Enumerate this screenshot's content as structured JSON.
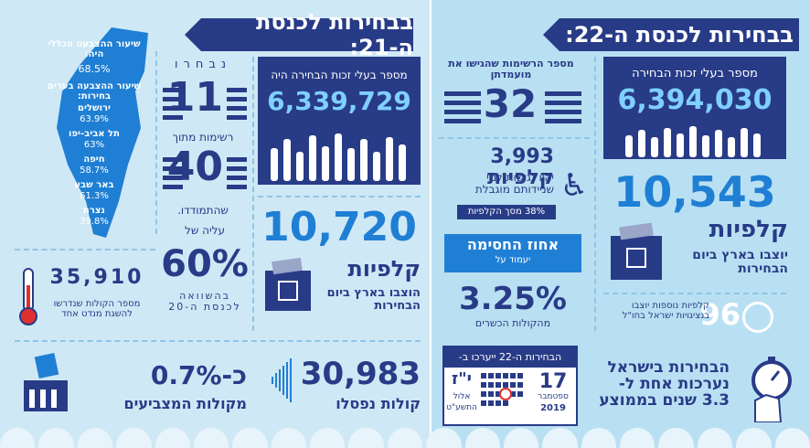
{
  "right": {
    "banner": "בבחירות לכנסת ה-22:",
    "voters_label": "מספר בעלי זכות הבחירה",
    "voters_value": "6,394,030",
    "lists_label": "מספר הרשימות שהגישו את מועמדתן",
    "lists_value": "32",
    "accessible_value": "3,993 קלפיות",
    "accessible_desc": "יהיו נגישות למי שניידותם מוגבלת",
    "accessible_pct": "38% מסך הקלפיות",
    "threshold_title": "אחוז החסימה",
    "threshold_sub": "יעמוד על",
    "threshold_value": "3.25%",
    "threshold_desc": "מהקולות הכשרים",
    "ballots_value": "10,543",
    "ballots_word": "קלפיות",
    "ballots_desc": "יוצבו בארץ ביום הבחירות",
    "abroad_num": "96",
    "abroad_desc": "קלפיות נוספות יוצבו בנציגויות ישראל בחו\"ל",
    "calendar_title": "הבחירות ה-22 ייערכו ב-",
    "calendar_day": "17",
    "calendar_month": "ספטמבר",
    "calendar_year": "2019",
    "calendar_hebdate": "י\"ז",
    "calendar_hebmonth": "אלול",
    "calendar_hebyear": "התשע\"ט",
    "frequency": "הבחירות בישראל נערכות אחת ל- 3.3 שנים בממוצע"
  },
  "left": {
    "banner": "בבחירות לכנסת ה-21:",
    "map_turnout_label": "שיעור ההצבעה הכללי היה:",
    "map_turnout_value": "68.5%",
    "map_cities_label": "שיעור ההצבעה בערים בחירות:",
    "cities": [
      {
        "name": "ירושלים",
        "value": "63.9%"
      },
      {
        "name": "תל אביב-יפו",
        "value": "63%"
      },
      {
        "name": "חיפה",
        "value": "58.7%"
      },
      {
        "name": "באר שבע",
        "value": "61.3%"
      },
      {
        "name": "נצרת",
        "value": "39.8%"
      }
    ],
    "elected_label": "נבחרו",
    "elected_value": "11",
    "lists_label": "רשימות מתוך",
    "lists_value": "40",
    "contested_label": "שהתמודדו.",
    "voters_label": "מספר בעלי זכות הבחירה היה",
    "voters_value": "6,339,729",
    "ballots_value": "10,720",
    "ballots_word": "קלפיות",
    "ballots_desc": "הוצבו בארץ ביום הבחירות",
    "rise_label": "עליה של",
    "rise_value": "60%",
    "rise_desc": "בהשוואה לכנסת ה-20",
    "thermo_value": "35,910",
    "thermo_desc": "מספר הקולות שנדרשו להשגת מנדט אחד",
    "invalid_value": "30,983",
    "invalid_desc": "קולות נפסלו",
    "pct_value": "כ-0.7%",
    "pct_desc": "מקולות המצביעים"
  },
  "colors": {
    "navy": "#283b87",
    "blue": "#1f7fd4",
    "bg_left": "#cfe8f5",
    "bg_right": "#b9e0f2"
  }
}
